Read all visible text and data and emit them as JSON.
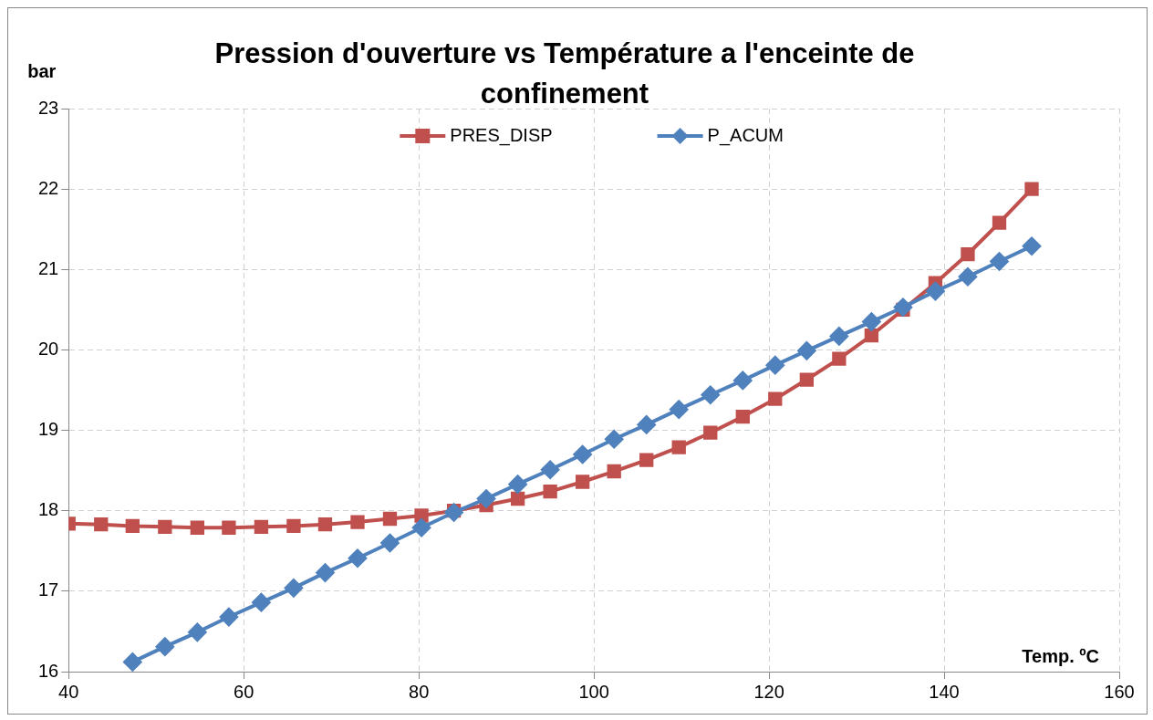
{
  "chart_data": {
    "type": "line",
    "title": "Pression d'ouverture  vs Température a l'enceinte de confinement",
    "xlabel": "Temp. ºC",
    "ylabel": "bar",
    "x": [
      40,
      43.7,
      47.3,
      51,
      54.7,
      58.3,
      62,
      65.7,
      69.3,
      73,
      76.7,
      80.3,
      84,
      87.7,
      91.3,
      95,
      98.7,
      102.3,
      106,
      109.7,
      113.3,
      117,
      120.7,
      124.3,
      128,
      131.7,
      135.3,
      139,
      142.7,
      146.3,
      150
    ],
    "series": [
      {
        "name": "PRES_DISP",
        "color": "#c0504d",
        "marker": "square",
        "values": [
          17.84,
          17.83,
          17.81,
          17.8,
          17.79,
          17.79,
          17.8,
          17.81,
          17.83,
          17.86,
          17.9,
          17.94,
          18.0,
          18.07,
          18.15,
          18.24,
          18.36,
          18.49,
          18.63,
          18.79,
          18.97,
          19.17,
          19.39,
          19.63,
          19.89,
          20.18,
          20.5,
          20.83,
          21.19,
          21.58,
          22.0
        ]
      },
      {
        "name": "P_ACUM",
        "color": "#4f81bd",
        "marker": "diamond",
        "values": [
          null,
          null,
          16.12,
          16.31,
          16.49,
          16.68,
          16.86,
          17.04,
          17.23,
          17.41,
          17.6,
          17.79,
          17.98,
          18.15,
          18.33,
          18.51,
          18.7,
          18.89,
          19.07,
          19.26,
          19.44,
          19.62,
          19.81,
          19.99,
          20.17,
          20.35,
          20.53,
          20.73,
          20.91,
          21.1,
          21.29
        ]
      }
    ],
    "xlim": [
      40,
      160
    ],
    "xticks": [
      40,
      60,
      80,
      100,
      120,
      140,
      160
    ],
    "ylim": [
      16,
      23
    ],
    "yticks": [
      16,
      17,
      18,
      19,
      20,
      21,
      22,
      23
    ],
    "grid": true,
    "legend": "top",
    "line_style": "solid"
  }
}
